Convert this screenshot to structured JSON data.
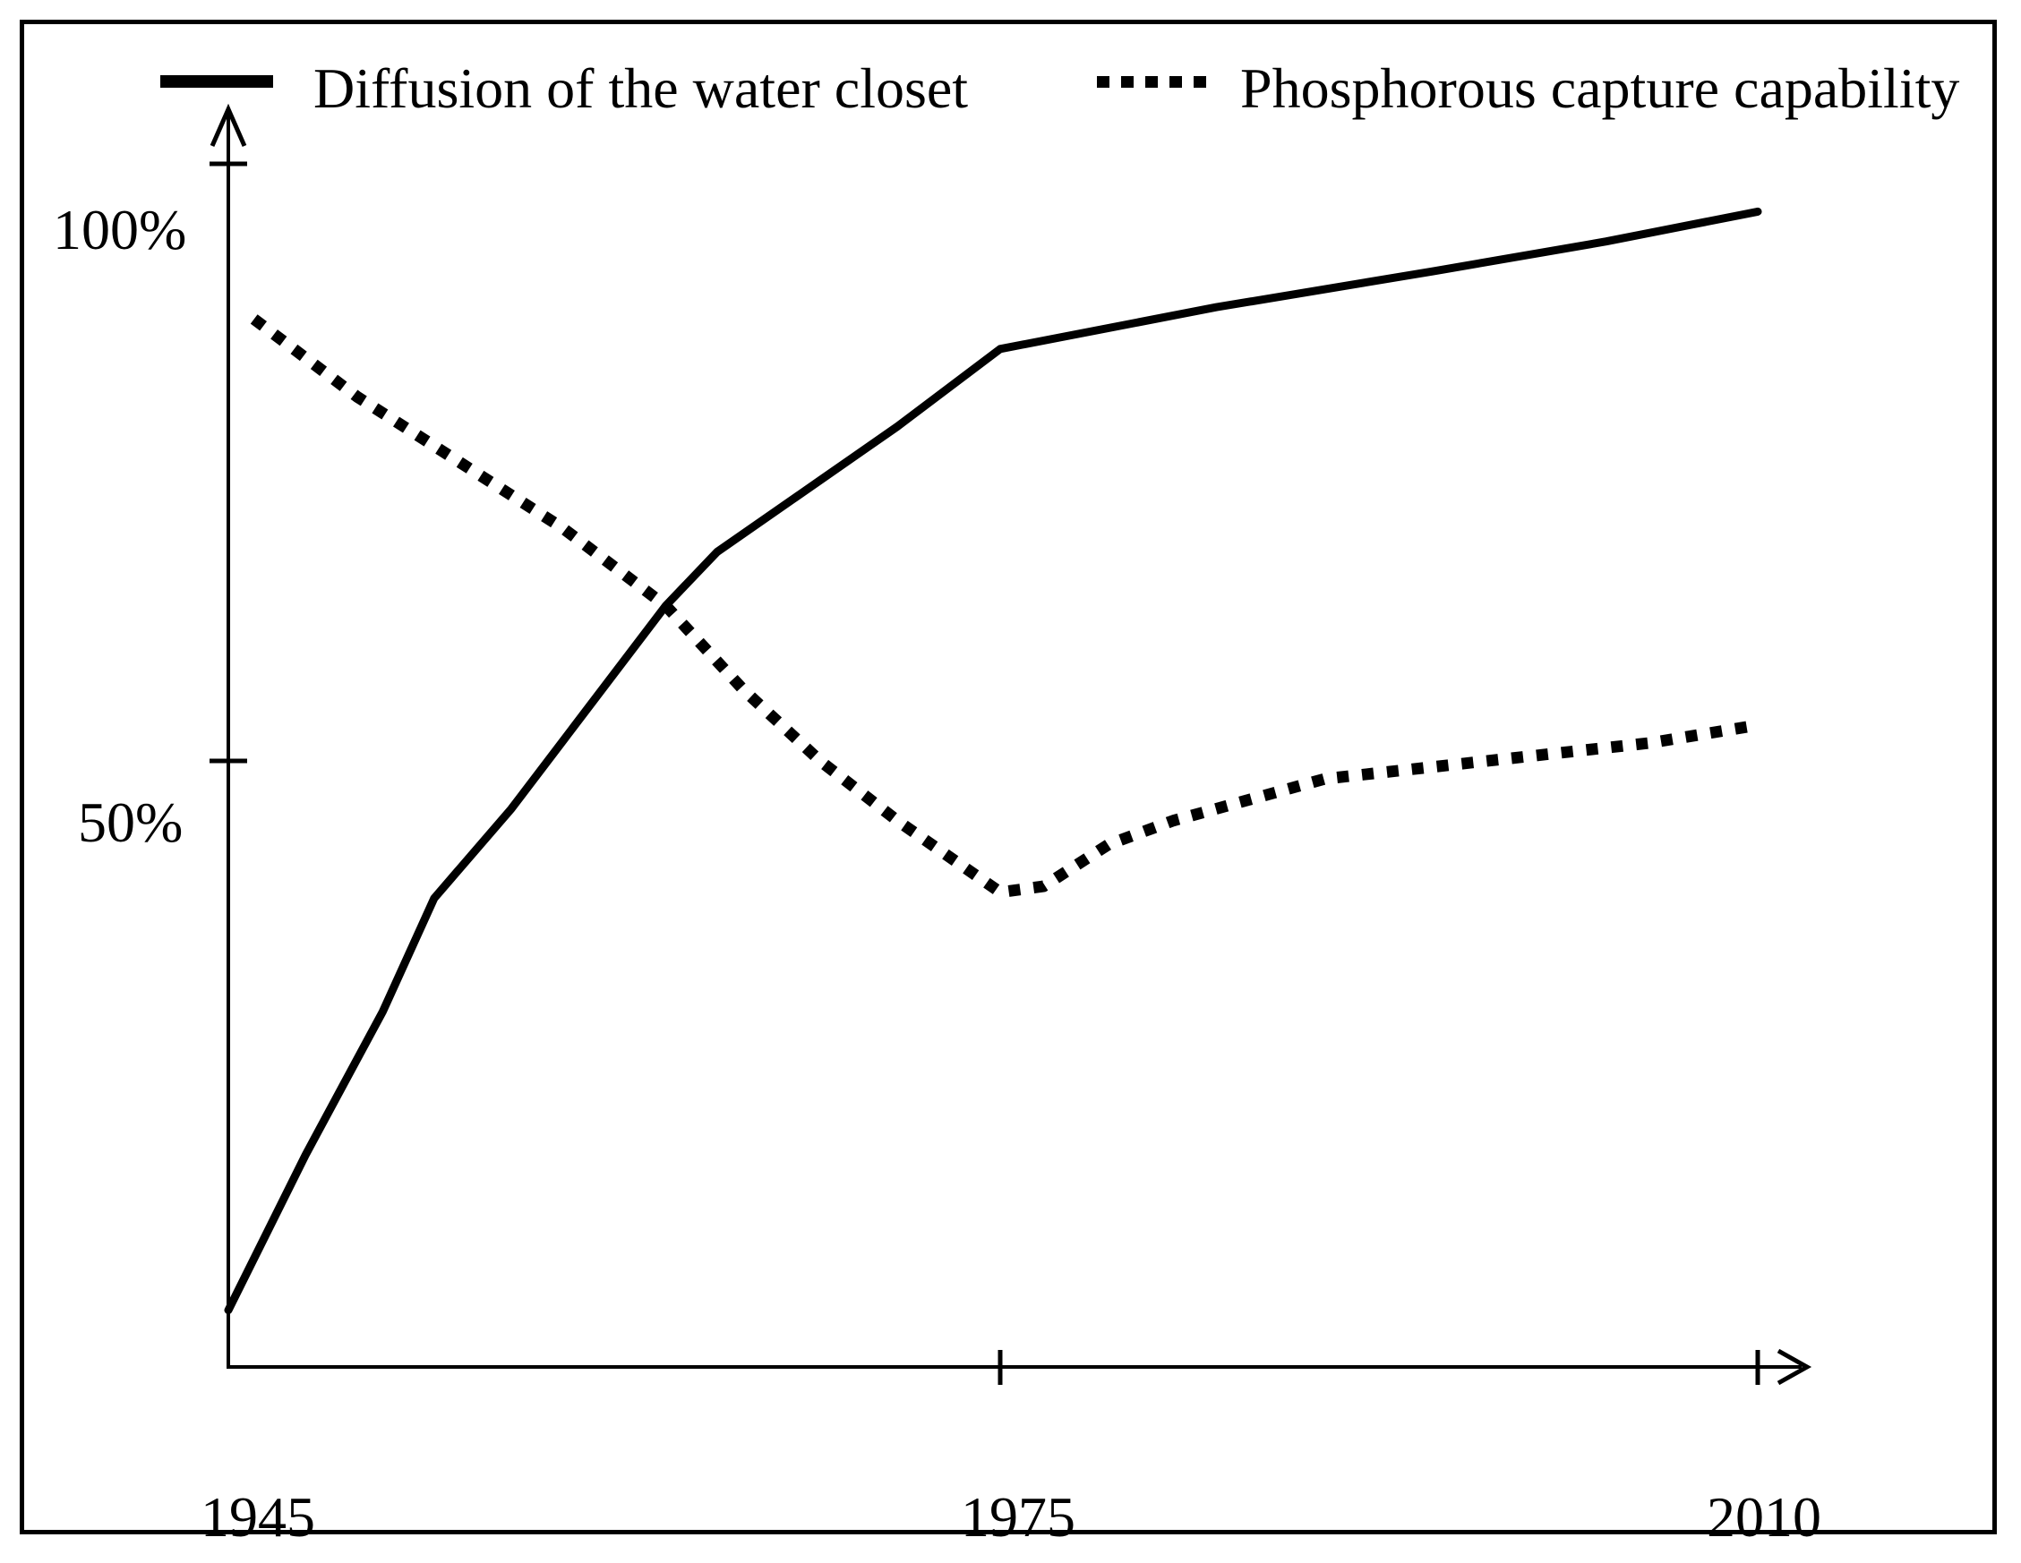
{
  "legend": {
    "items": [
      {
        "label": "Diffusion of the water closet",
        "swatch": "solid-line"
      },
      {
        "label": "Phosphorous capture capability",
        "swatch": "dotted-line"
      }
    ]
  },
  "axes": {
    "y_ticks": [
      "100%",
      "50%"
    ],
    "x_ticks": [
      "1945",
      "1975",
      "2010"
    ]
  },
  "colors": {
    "line": "#000000",
    "background": "#ffffff",
    "frame_border": "#000000"
  },
  "chart_data": {
    "type": "line",
    "title": "",
    "xlabel": "",
    "ylabel": "",
    "x_tick_labels": [
      "1945",
      "1975",
      "2010"
    ],
    "y_tick_labels": [
      "100%",
      "50%"
    ],
    "xlim": [
      1945,
      2012
    ],
    "ylim": [
      0,
      105
    ],
    "grid": false,
    "legend_position": "top",
    "series": [
      {
        "name": "Diffusion of the water closet",
        "line_style": "solid",
        "color": "#000000",
        "points": [
          [
            1945,
            4
          ],
          [
            1948,
            17
          ],
          [
            1951,
            29
          ],
          [
            1953,
            38.5
          ],
          [
            1956,
            46
          ],
          [
            1959,
            54.5
          ],
          [
            1962,
            63
          ],
          [
            1964,
            67.5
          ],
          [
            1968,
            73.5
          ],
          [
            1971,
            78
          ],
          [
            1975,
            84.5
          ],
          [
            1985,
            88
          ],
          [
            1995,
            91
          ],
          [
            2003,
            93.5
          ],
          [
            2010,
            96
          ]
        ]
      },
      {
        "name": "Phosphorous capture capability",
        "line_style": "dotted",
        "color": "#000000",
        "points": [
          [
            1946,
            87
          ],
          [
            1950,
            80.5
          ],
          [
            1954,
            75
          ],
          [
            1958,
            69.5
          ],
          [
            1962,
            63
          ],
          [
            1965,
            56
          ],
          [
            1968,
            50
          ],
          [
            1971,
            45
          ],
          [
            1973,
            42
          ],
          [
            1975,
            39
          ],
          [
            1977,
            39.5
          ],
          [
            1980,
            43
          ],
          [
            1983,
            45
          ],
          [
            1986,
            46.5
          ],
          [
            1990,
            48.5
          ],
          [
            1995,
            49.5
          ],
          [
            2000,
            50.5
          ],
          [
            2005,
            51.5
          ],
          [
            2010,
            53
          ]
        ]
      }
    ]
  }
}
